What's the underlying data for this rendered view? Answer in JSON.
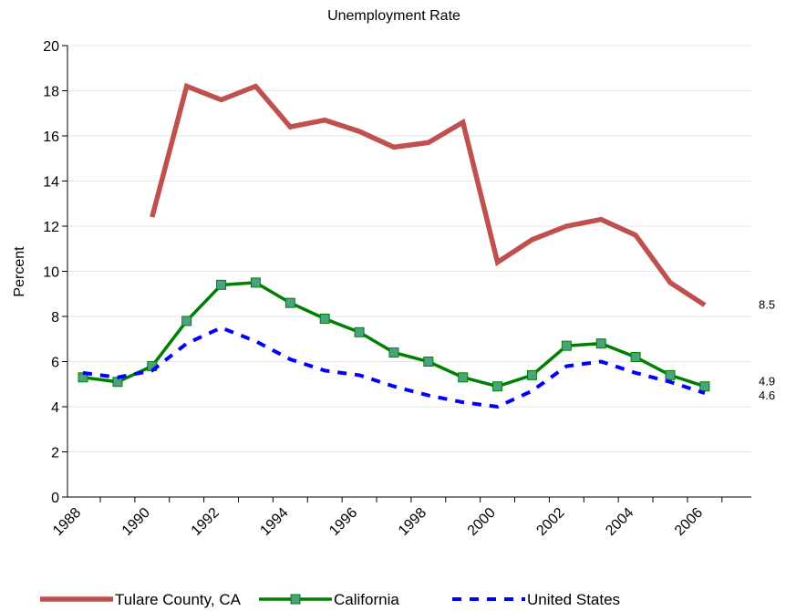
{
  "chart_data": {
    "type": "line",
    "title": "Unemployment Rate",
    "xlabel": "",
    "ylabel": "Percent",
    "ylim": [
      0,
      20
    ],
    "yticks": [
      0,
      2,
      4,
      6,
      8,
      10,
      12,
      14,
      16,
      18,
      20
    ],
    "xticks": [
      "1988",
      "1990",
      "1992",
      "1994",
      "1996",
      "1998",
      "2000",
      "2002",
      "2004",
      "2006"
    ],
    "x": [
      1988,
      1989,
      1990,
      1991,
      1992,
      1993,
      1994,
      1995,
      1996,
      1997,
      1998,
      1999,
      2000,
      2001,
      2002,
      2003,
      2004,
      2005,
      2006
    ],
    "grid": "horizontal",
    "legend_position": "bottom",
    "series": [
      {
        "name": "Tulare County, CA",
        "color": "#c0504d",
        "style": "solid",
        "values": [
          null,
          null,
          12.4,
          18.2,
          17.6,
          18.2,
          16.4,
          16.7,
          16.2,
          15.5,
          15.7,
          16.6,
          10.4,
          11.4,
          12.0,
          12.3,
          11.6,
          9.5,
          8.5
        ],
        "end_label": "8.5"
      },
      {
        "name": "California",
        "color": "#008000",
        "marker_color": "#4aa37e",
        "style": "solid-square-markers",
        "values": [
          5.3,
          5.1,
          5.8,
          7.8,
          9.4,
          9.5,
          8.6,
          7.9,
          7.3,
          6.4,
          6.0,
          5.3,
          4.9,
          5.4,
          6.7,
          6.8,
          6.2,
          5.4,
          4.9
        ],
        "end_label": "4.9"
      },
      {
        "name": "United States",
        "color": "#0000ff",
        "style": "dashed",
        "values": [
          5.5,
          5.3,
          5.6,
          6.8,
          7.5,
          6.9,
          6.1,
          5.6,
          5.4,
          4.9,
          4.5,
          4.2,
          4.0,
          4.7,
          5.8,
          6.0,
          5.5,
          5.1,
          4.6
        ],
        "end_label": "4.6"
      }
    ]
  }
}
